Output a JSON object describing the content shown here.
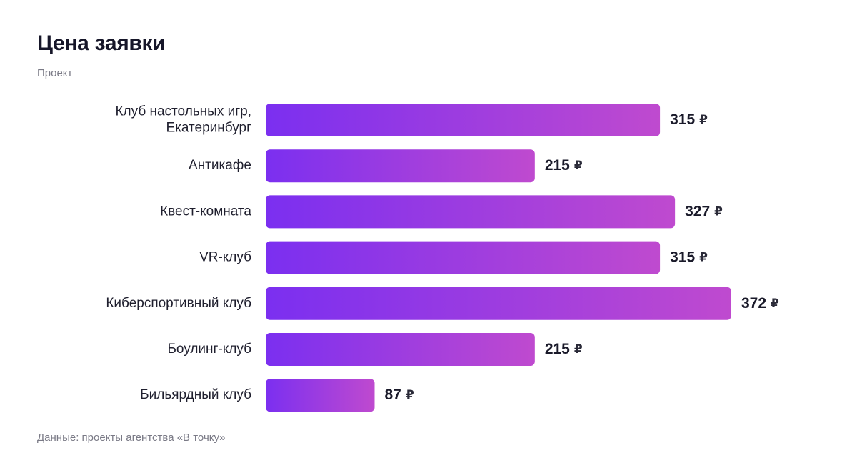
{
  "chart_data": {
    "type": "bar",
    "orientation": "horizontal",
    "title": "Цена заявки",
    "subtitle": "Проект",
    "source": "Данные: проекты агентства «В точку»",
    "categories": [
      "Клуб настольных игр, Екатеринбург",
      "Антикафе",
      "Квест-комната",
      "VR-клуб",
      "Киберспортивный клуб",
      "Боулинг-клуб",
      "Бильярдный клуб"
    ],
    "category_lines": [
      [
        "Клуб настольных игр,",
        "Екатеринбург"
      ],
      [
        "Антикафе"
      ],
      [
        "Квест-комната"
      ],
      [
        "VR-клуб"
      ],
      [
        "Киберспортивный клуб"
      ],
      [
        "Боулинг-клуб"
      ],
      [
        "Бильярдный клуб"
      ]
    ],
    "values": [
      315,
      215,
      327,
      315,
      372,
      215,
      87
    ],
    "value_unit": "₽",
    "xlim": [
      0,
      372
    ],
    "grid": false,
    "legend": "none",
    "colors": {
      "bar_start": "#7B2FF0",
      "bar_end": "#BF4ACF"
    }
  }
}
